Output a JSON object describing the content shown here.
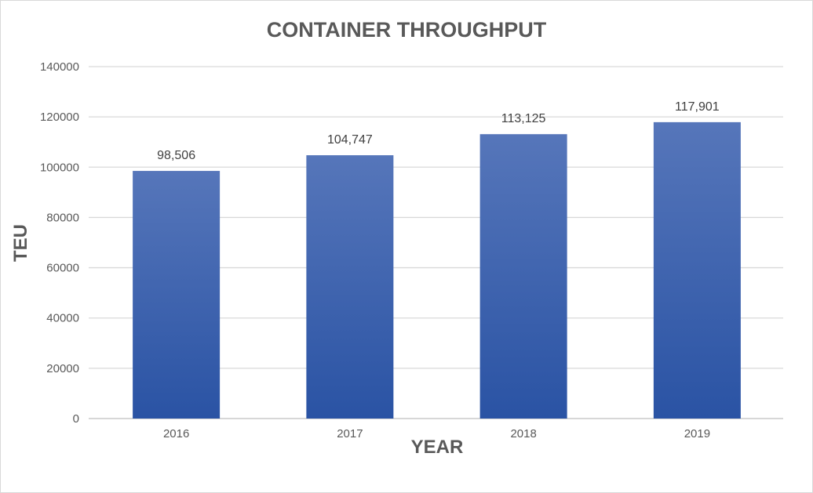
{
  "chart_data": {
    "type": "bar",
    "title": "CONTAINER THROUGHPUT",
    "xlabel": "YEAR",
    "ylabel": "TEU",
    "categories": [
      "2016",
      "2017",
      "2018",
      "2019"
    ],
    "values": [
      98506,
      104747,
      113125,
      117901
    ],
    "data_labels": [
      "98,506",
      "104,747",
      "113,125",
      "117,901"
    ],
    "ylim": [
      0,
      140000
    ],
    "yticks": [
      0,
      20000,
      40000,
      60000,
      80000,
      100000,
      120000,
      140000
    ],
    "grid": true,
    "legend": "none",
    "colors": {
      "bar_top": "#5676ba",
      "bar_bottom": "#2a53a4",
      "grid": "#d9d9d9"
    }
  }
}
